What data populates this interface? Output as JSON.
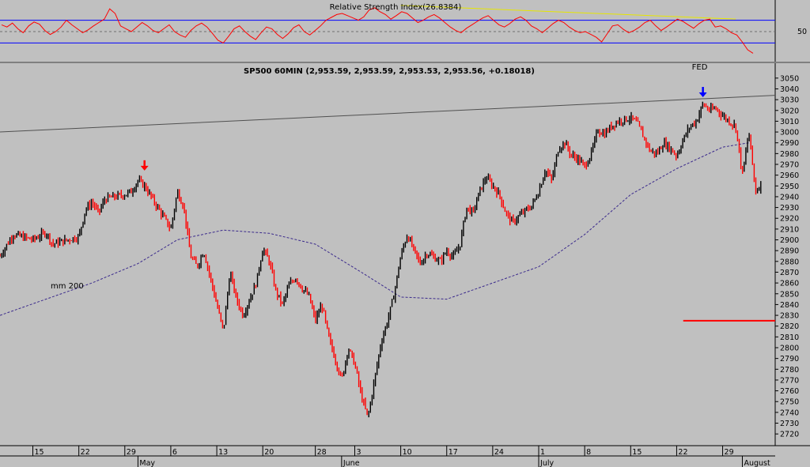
{
  "chart_data": [
    {
      "type": "line",
      "title": "Relative Strength Index(26.8384)",
      "y_ticks": [
        50
      ],
      "ylim": [
        0,
        100
      ],
      "bands": [
        70,
        30
      ],
      "colors": {
        "rsi": "#ff0000",
        "bands": "#0000ff",
        "trend": "#e6e600",
        "mid": "#707070"
      },
      "trendline": [
        {
          "date": "2019-06-10",
          "value": 96
        },
        {
          "date": "2019-07-31",
          "value": 72
        }
      ],
      "series": [
        {
          "values": [
            62,
            58,
            65,
            55,
            48,
            60,
            67,
            63,
            52,
            45,
            50,
            58,
            70,
            62,
            55,
            48,
            53,
            60,
            66,
            72,
            90,
            82,
            60,
            55,
            50,
            58,
            66,
            60,
            52,
            48,
            55,
            62,
            50,
            44,
            40,
            52,
            60,
            65,
            58,
            47,
            35,
            30,
            42,
            55,
            60,
            50,
            42,
            36,
            48,
            58,
            55,
            45,
            38,
            46,
            57,
            62,
            50,
            44,
            52,
            60,
            70,
            75,
            80,
            82,
            78,
            74,
            70,
            76,
            88,
            92,
            85,
            80,
            72,
            78,
            85,
            82,
            74,
            66,
            70,
            76,
            80,
            74,
            66,
            58,
            52,
            48,
            56,
            62,
            68,
            74,
            78,
            70,
            62,
            58,
            64,
            72,
            76,
            70,
            60,
            55,
            48,
            56,
            64,
            70,
            66,
            58,
            52,
            48,
            50,
            45,
            40,
            32,
            46,
            60,
            62,
            54,
            48,
            52,
            58,
            66,
            70,
            60,
            52,
            58,
            65,
            72,
            68,
            62,
            56,
            64,
            70,
            72,
            58,
            60,
            55,
            48,
            44,
            32,
            18,
            12
          ]
        }
      ]
    },
    {
      "type": "line",
      "title": "SP500 60MIN (2,953.59, 2,953.59, 2,953.53, 2,953.56, +0.18018)",
      "ylim": [
        2715,
        3055
      ],
      "y_ticks": [
        2720,
        2730,
        2740,
        2750,
        2760,
        2770,
        2780,
        2790,
        2800,
        2810,
        2820,
        2830,
        2840,
        2850,
        2860,
        2870,
        2880,
        2890,
        2900,
        2910,
        2920,
        2930,
        2940,
        2950,
        2960,
        2970,
        2980,
        2990,
        3000,
        3010,
        3020,
        3030,
        3040,
        3050
      ],
      "x_ticks": [
        {
          "date": "2019-04-15",
          "label": "15"
        },
        {
          "date": "2019-04-22",
          "label": "22"
        },
        {
          "date": "2019-04-29",
          "label": "29"
        },
        {
          "date": "2019-05-06",
          "label": "6"
        },
        {
          "date": "2019-05-13",
          "label": "13"
        },
        {
          "date": "2019-05-20",
          "label": "20"
        },
        {
          "date": "2019-05-28",
          "label": "28"
        },
        {
          "date": "2019-06-03",
          "label": "3"
        },
        {
          "date": "2019-06-10",
          "label": "10"
        },
        {
          "date": "2019-06-17",
          "label": "17"
        },
        {
          "date": "2019-06-24",
          "label": "24"
        },
        {
          "date": "2019-07-01",
          "label": "1"
        },
        {
          "date": "2019-07-08",
          "label": "8"
        },
        {
          "date": "2019-07-15",
          "label": "15"
        },
        {
          "date": "2019-07-22",
          "label": "22"
        },
        {
          "date": "2019-07-29",
          "label": "29"
        }
      ],
      "month_labels": [
        {
          "date": "2019-05-01",
          "label": "May"
        },
        {
          "date": "2019-06-01",
          "label": "June"
        },
        {
          "date": "2019-07-01",
          "label": "July"
        },
        {
          "date": "2019-08-01",
          "label": "August"
        }
      ],
      "x_range": [
        "2019-04-10",
        "2019-08-06"
      ],
      "colors": {
        "up": "#000000",
        "down": "#ff0000",
        "ma": "#3b2a8c",
        "trend": "#505050",
        "level": "#ff0000",
        "arrow_red": "#ff0000",
        "arrow_blue": "#0000ff",
        "fed": "#0000ff"
      },
      "ma_label": "mm 200",
      "fed_label": "FED",
      "trendline": [
        {
          "date": "2019-04-10",
          "value": 3000
        },
        {
          "date": "2019-08-06",
          "value": 3034
        }
      ],
      "level_line": {
        "value": 2825,
        "from": "2019-07-23"
      },
      "arrows": [
        {
          "date": "2019-05-02",
          "value": 2965,
          "color": "arrow_red"
        },
        {
          "date": "2019-07-26",
          "value": 3033,
          "color": "arrow_blue"
        }
      ],
      "fed_marker": {
        "date": "2019-07-26"
      },
      "ma200": [
        {
          "date": "2019-04-10",
          "value": 2830
        },
        {
          "date": "2019-04-17",
          "value": 2845
        },
        {
          "date": "2019-04-24",
          "value": 2860
        },
        {
          "date": "2019-05-01",
          "value": 2878
        },
        {
          "date": "2019-05-07",
          "value": 2900
        },
        {
          "date": "2019-05-14",
          "value": 2909
        },
        {
          "date": "2019-05-21",
          "value": 2906
        },
        {
          "date": "2019-05-28",
          "value": 2896
        },
        {
          "date": "2019-06-04",
          "value": 2870
        },
        {
          "date": "2019-06-10",
          "value": 2847
        },
        {
          "date": "2019-06-17",
          "value": 2845
        },
        {
          "date": "2019-06-24",
          "value": 2860
        },
        {
          "date": "2019-07-01",
          "value": 2875
        },
        {
          "date": "2019-07-08",
          "value": 2905
        },
        {
          "date": "2019-07-15",
          "value": 2942
        },
        {
          "date": "2019-07-22",
          "value": 2966
        },
        {
          "date": "2019-07-29",
          "value": 2986
        },
        {
          "date": "2019-08-02",
          "value": 2990
        }
      ],
      "series": [
        {
          "name": "price",
          "points": [
            {
              "date": "2019-04-10",
              "value": 2885
            },
            {
              "date": "2019-04-12",
              "value": 2905
            },
            {
              "date": "2019-04-15",
              "value": 2900
            },
            {
              "date": "2019-04-17",
              "value": 2907
            },
            {
              "date": "2019-04-18",
              "value": 2896
            },
            {
              "date": "2019-04-22",
              "value": 2903
            },
            {
              "date": "2019-04-23",
              "value": 2928
            },
            {
              "date": "2019-04-24",
              "value": 2935
            },
            {
              "date": "2019-04-25",
              "value": 2925
            },
            {
              "date": "2019-04-26",
              "value": 2938
            },
            {
              "date": "2019-04-29",
              "value": 2942
            },
            {
              "date": "2019-04-30",
              "value": 2945
            },
            {
              "date": "2019-05-01",
              "value": 2955
            },
            {
              "date": "2019-05-02",
              "value": 2950
            },
            {
              "date": "2019-05-03",
              "value": 2940
            },
            {
              "date": "2019-05-04",
              "value": 2930
            },
            {
              "date": "2019-05-06",
              "value": 2910
            },
            {
              "date": "2019-05-07",
              "value": 2945
            },
            {
              "date": "2019-05-08",
              "value": 2930
            },
            {
              "date": "2019-05-09",
              "value": 2885
            },
            {
              "date": "2019-05-10",
              "value": 2875
            },
            {
              "date": "2019-05-11",
              "value": 2890
            },
            {
              "date": "2019-05-13",
              "value": 2840
            },
            {
              "date": "2019-05-14",
              "value": 2815
            },
            {
              "date": "2019-05-15",
              "value": 2870
            },
            {
              "date": "2019-05-16",
              "value": 2845
            },
            {
              "date": "2019-05-17",
              "value": 2830
            },
            {
              "date": "2019-05-19",
              "value": 2860
            },
            {
              "date": "2019-05-20",
              "value": 2892
            },
            {
              "date": "2019-05-21",
              "value": 2880
            },
            {
              "date": "2019-05-22",
              "value": 2852
            },
            {
              "date": "2019-05-23",
              "value": 2840
            },
            {
              "date": "2019-05-24",
              "value": 2858
            },
            {
              "date": "2019-05-25",
              "value": 2865
            },
            {
              "date": "2019-05-26",
              "value": 2855
            },
            {
              "date": "2019-05-27",
              "value": 2848
            },
            {
              "date": "2019-05-28",
              "value": 2825
            },
            {
              "date": "2019-05-29",
              "value": 2840
            },
            {
              "date": "2019-05-30",
              "value": 2810
            },
            {
              "date": "2019-05-31",
              "value": 2790
            },
            {
              "date": "2019-06-01",
              "value": 2770
            },
            {
              "date": "2019-06-02",
              "value": 2800
            },
            {
              "date": "2019-06-03",
              "value": 2785
            },
            {
              "date": "2019-06-04",
              "value": 2755
            },
            {
              "date": "2019-06-05",
              "value": 2735
            },
            {
              "date": "2019-06-06",
              "value": 2770
            },
            {
              "date": "2019-06-07",
              "value": 2805
            },
            {
              "date": "2019-06-08",
              "value": 2825
            },
            {
              "date": "2019-06-09",
              "value": 2850
            },
            {
              "date": "2019-06-10",
              "value": 2885
            },
            {
              "date": "2019-06-11",
              "value": 2905
            },
            {
              "date": "2019-06-12",
              "value": 2890
            },
            {
              "date": "2019-06-13",
              "value": 2878
            },
            {
              "date": "2019-06-14",
              "value": 2888
            },
            {
              "date": "2019-06-16",
              "value": 2880
            },
            {
              "date": "2019-06-17",
              "value": 2890
            },
            {
              "date": "2019-06-18",
              "value": 2884
            },
            {
              "date": "2019-06-19",
              "value": 2895
            },
            {
              "date": "2019-06-20",
              "value": 2930
            },
            {
              "date": "2019-06-21",
              "value": 2925
            },
            {
              "date": "2019-06-22",
              "value": 2945
            },
            {
              "date": "2019-06-23",
              "value": 2958
            },
            {
              "date": "2019-06-24",
              "value": 2950
            },
            {
              "date": "2019-06-25",
              "value": 2942
            },
            {
              "date": "2019-06-26",
              "value": 2925
            },
            {
              "date": "2019-06-27",
              "value": 2916
            },
            {
              "date": "2019-06-28",
              "value": 2922
            },
            {
              "date": "2019-06-30",
              "value": 2932
            },
            {
              "date": "2019-07-01",
              "value": 2945
            },
            {
              "date": "2019-07-02",
              "value": 2965
            },
            {
              "date": "2019-07-03",
              "value": 2955
            },
            {
              "date": "2019-07-04",
              "value": 2985
            },
            {
              "date": "2019-07-05",
              "value": 2990
            },
            {
              "date": "2019-07-06",
              "value": 2978
            },
            {
              "date": "2019-07-07",
              "value": 2975
            },
            {
              "date": "2019-07-08",
              "value": 2968
            },
            {
              "date": "2019-07-09",
              "value": 2980
            },
            {
              "date": "2019-07-10",
              "value": 3002
            },
            {
              "date": "2019-07-11",
              "value": 2998
            },
            {
              "date": "2019-07-12",
              "value": 3005
            },
            {
              "date": "2019-07-13",
              "value": 3010
            },
            {
              "date": "2019-07-15",
              "value": 3013
            },
            {
              "date": "2019-07-16",
              "value": 3008
            },
            {
              "date": "2019-07-17",
              "value": 2995
            },
            {
              "date": "2019-07-18",
              "value": 2982
            },
            {
              "date": "2019-07-19",
              "value": 2980
            },
            {
              "date": "2019-07-20",
              "value": 2990
            },
            {
              "date": "2019-07-21",
              "value": 2985
            },
            {
              "date": "2019-07-22",
              "value": 2978
            },
            {
              "date": "2019-07-23",
              "value": 2993
            },
            {
              "date": "2019-07-24",
              "value": 3005
            },
            {
              "date": "2019-07-25",
              "value": 3010
            },
            {
              "date": "2019-07-26",
              "value": 3026
            },
            {
              "date": "2019-07-27",
              "value": 3020
            },
            {
              "date": "2019-07-28",
              "value": 3022
            },
            {
              "date": "2019-07-29",
              "value": 3015
            },
            {
              "date": "2019-07-30",
              "value": 3010
            },
            {
              "date": "2019-07-31",
              "value": 3005
            },
            {
              "date": "2019-08-01",
              "value": 2960
            },
            {
              "date": "2019-08-02",
              "value": 3000
            },
            {
              "date": "2019-08-03",
              "value": 2945
            },
            {
              "date": "2019-08-04",
              "value": 2953
            }
          ]
        }
      ]
    }
  ]
}
